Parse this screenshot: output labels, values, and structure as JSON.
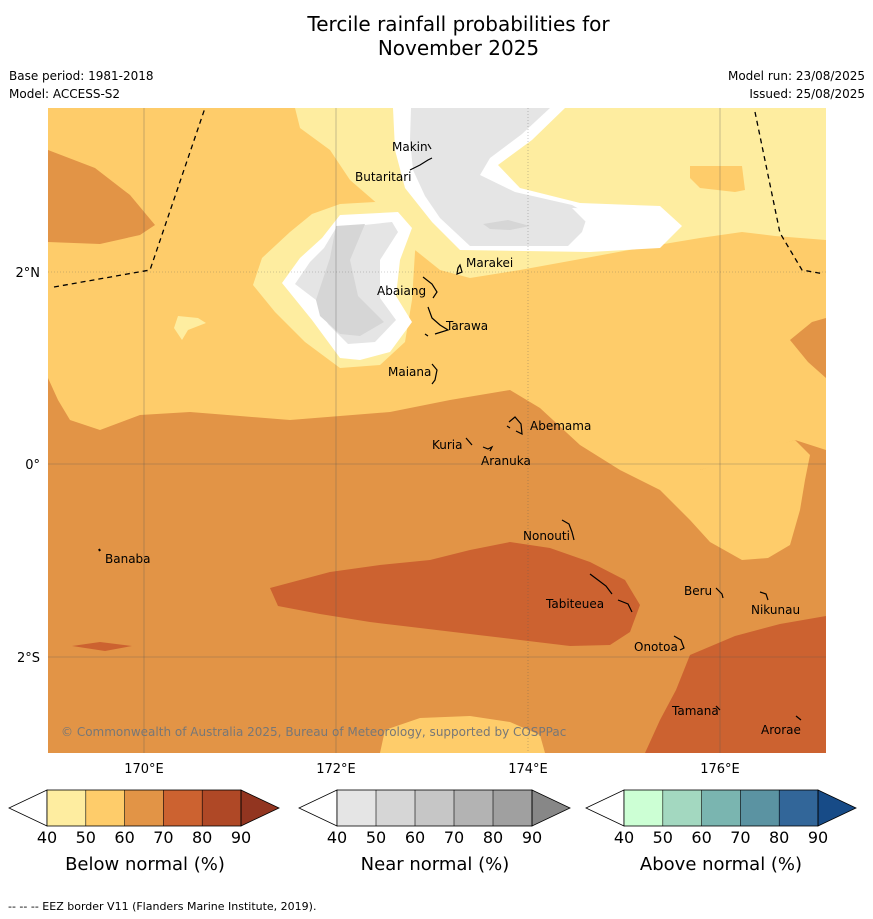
{
  "header": {
    "title_line1": "Tercile rainfall probabilities for",
    "title_line2": "November 2025",
    "base_period": "Base period: 1981-2018",
    "model": "Model: ACCESS-S2",
    "model_run": "Model run: 23/08/2025",
    "issued": "Issued: 25/08/2025"
  },
  "map": {
    "lon_labels": [
      "170°E",
      "172°E",
      "174°E",
      "176°E"
    ],
    "lat_labels": [
      "2°N",
      "0°",
      "2°S"
    ],
    "places": [
      {
        "name": "Makin"
      },
      {
        "name": "Butaritari"
      },
      {
        "name": "Marakei"
      },
      {
        "name": "Abaiang"
      },
      {
        "name": "Tarawa"
      },
      {
        "name": "Maiana"
      },
      {
        "name": "Abemama"
      },
      {
        "name": "Kuria"
      },
      {
        "name": "Aranuka"
      },
      {
        "name": "Nonouti"
      },
      {
        "name": "Banaba"
      },
      {
        "name": "Tabiteuea"
      },
      {
        "name": "Beru"
      },
      {
        "name": "Nikunau"
      },
      {
        "name": "Onotoa"
      },
      {
        "name": "Tamana"
      },
      {
        "name": "Arorae"
      }
    ],
    "copyright": "© Commonwealth of Australia 2025, Bureau of Meteorology, supported by COSPPac"
  },
  "colorbars": {
    "ticks": [
      "40",
      "50",
      "60",
      "70",
      "80",
      "90"
    ],
    "below": {
      "label": "Below normal (%)",
      "colors": [
        "#ffffff",
        "#feeda0",
        "#fecc6a",
        "#e29446",
        "#cc6230",
        "#af4826",
        "#923520"
      ]
    },
    "near": {
      "label": "Near normal (%)",
      "colors": [
        "#ffffff",
        "#e5e5e5",
        "#d6d6d6",
        "#c6c6c6",
        "#b3b3b3",
        "#a0a0a0",
        "#878787"
      ]
    },
    "above": {
      "label": "Above normal (%)",
      "colors": [
        "#ffffff",
        "#ccffd4",
        "#a3d8c0",
        "#7ab5b0",
        "#5b93a2",
        "#326699",
        "#174b87"
      ]
    }
  },
  "footer": {
    "eez_note": "--  --  -- EEZ border V11 (Flanders Marine Institute, 2019)."
  }
}
